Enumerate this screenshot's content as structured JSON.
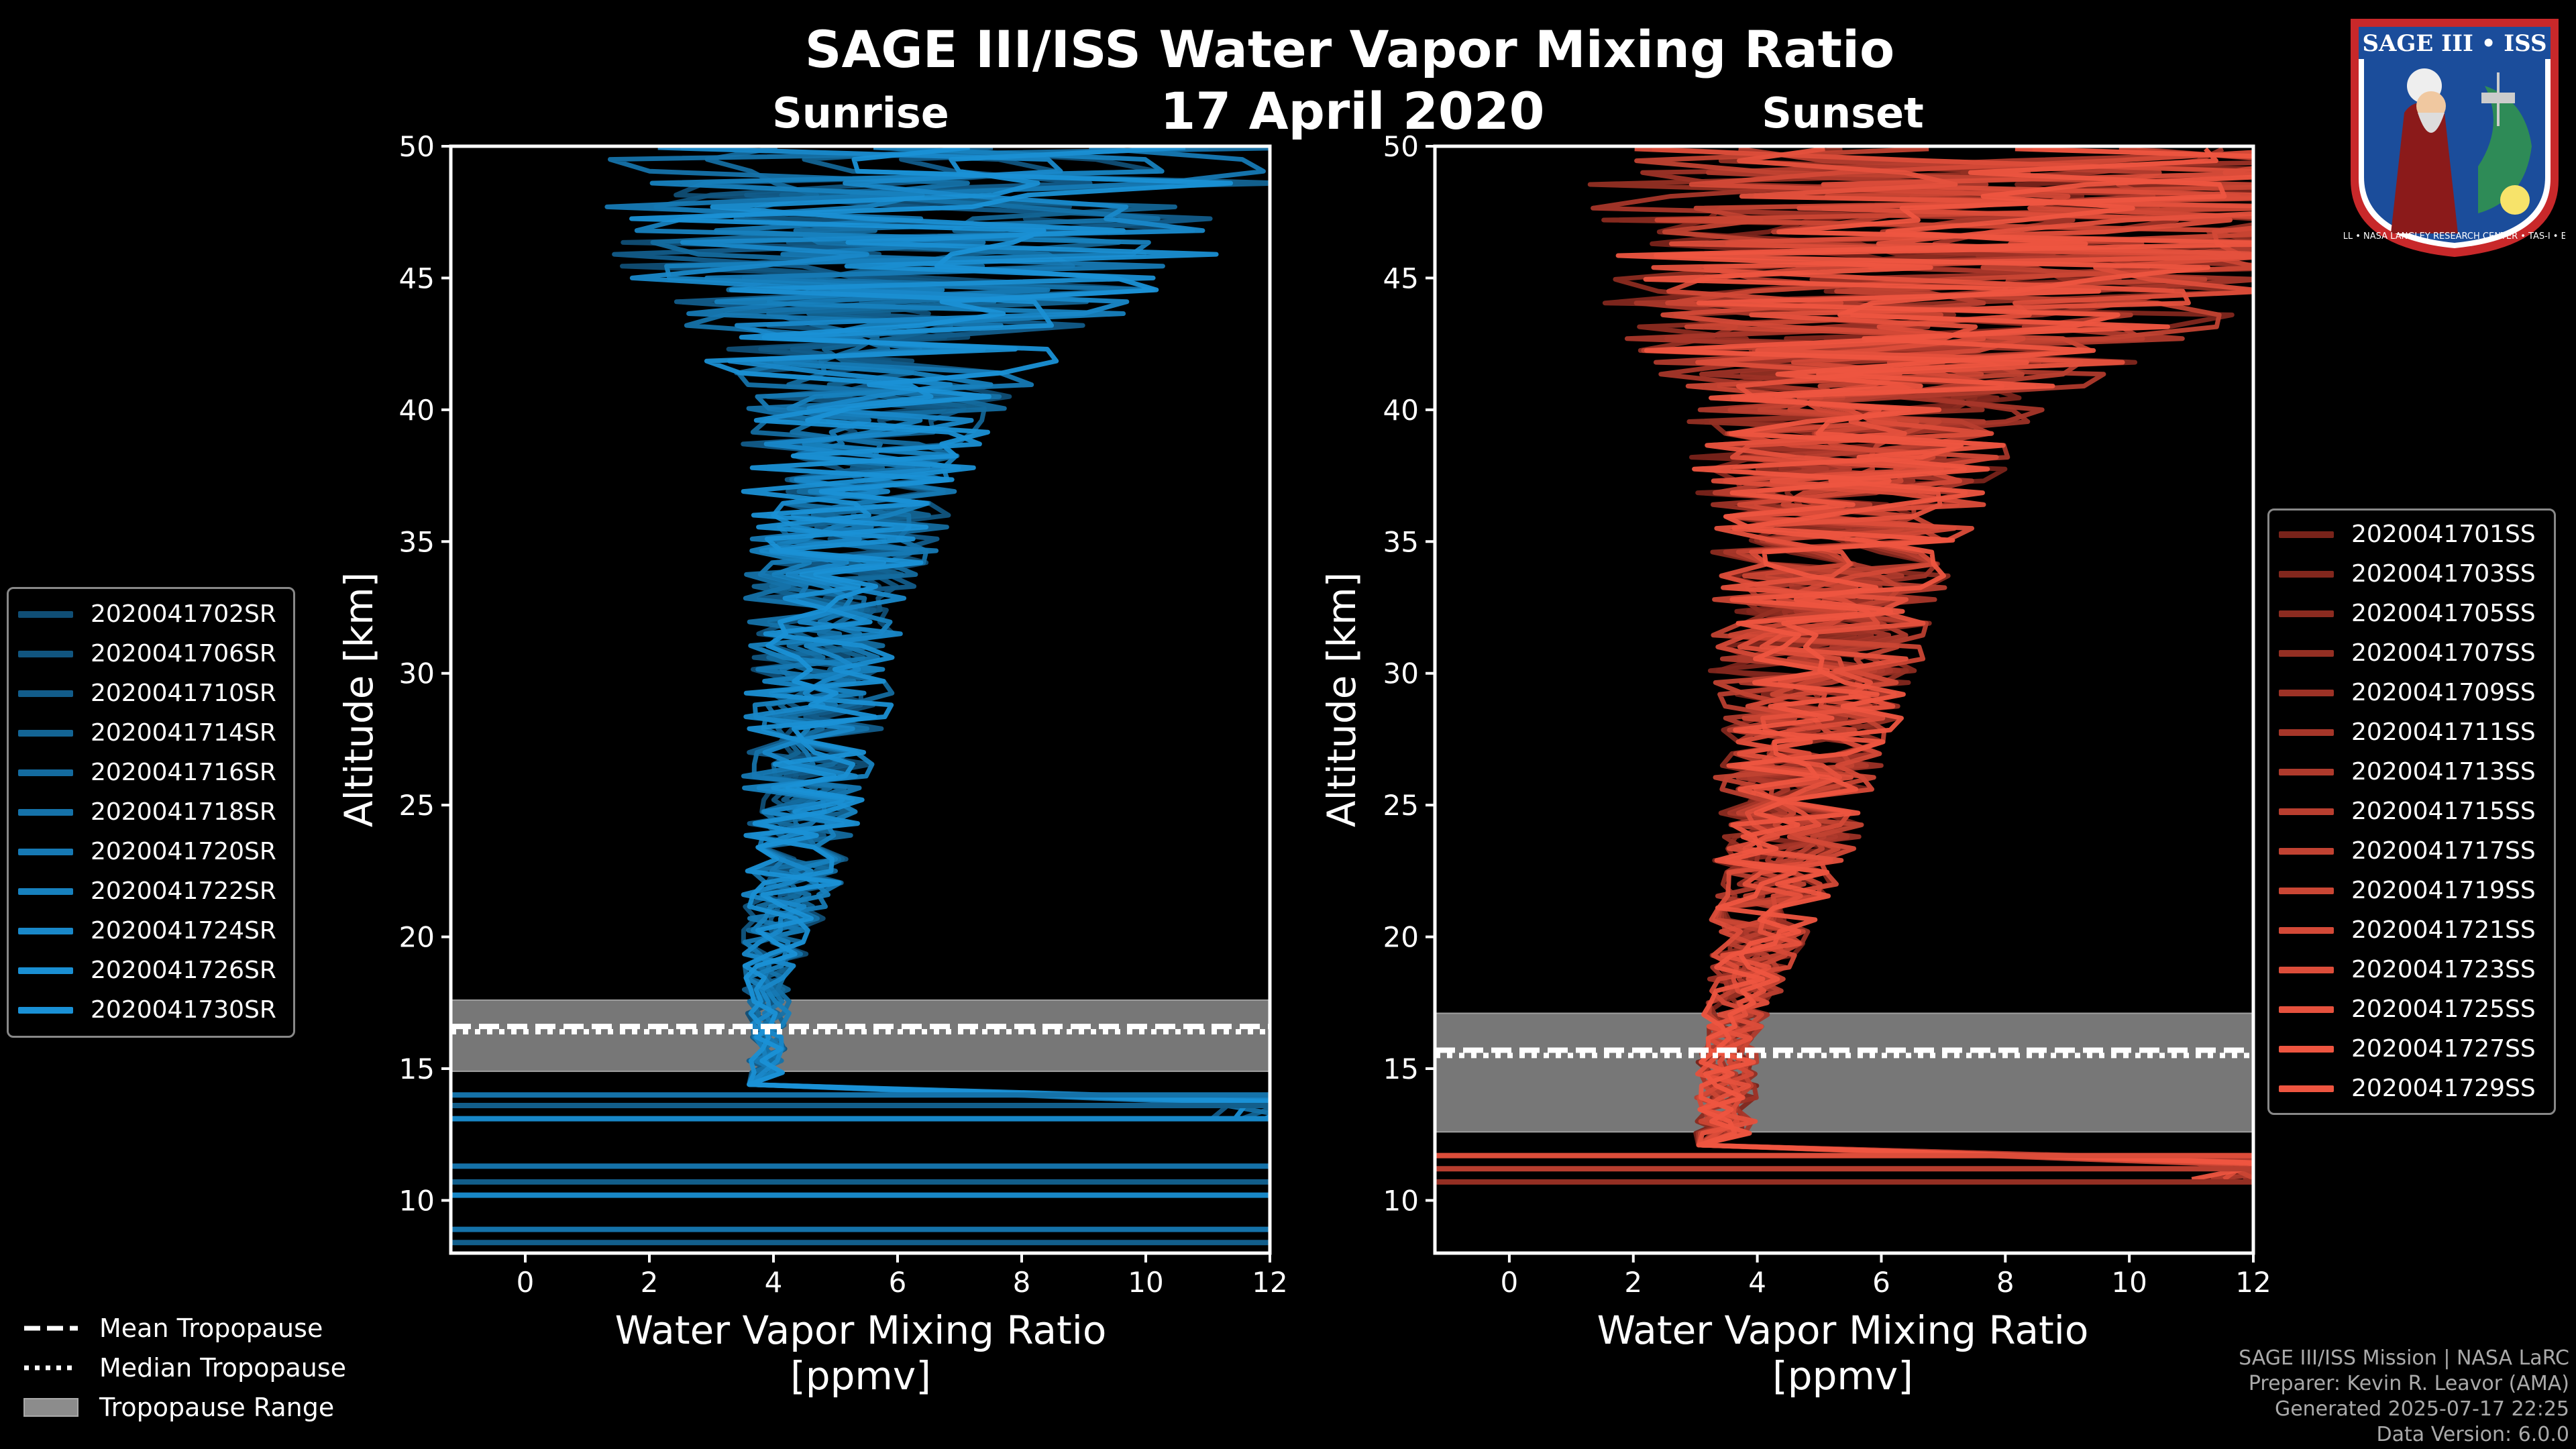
{
  "title": "SAGE III/ISS Water Vapor Mixing Ratio",
  "date": "17 April 2020",
  "badge": {
    "text": "SAGE III • ISS",
    "ring_text": "BALL • NASA LANGLEY RESEARCH CENTER • TAS-I • ESA"
  },
  "footer": {
    "line1": "SAGE III/ISS Mission | NASA LaRC",
    "line2": "Preparer: Kevin R. Leavor (AMA)",
    "line3": "Generated 2025-07-17 22:25",
    "line4": "Data Version: 6.0.0"
  },
  "tropo_legend": [
    "Mean Tropopause",
    "Median Tropopause",
    "Tropopause Range"
  ],
  "colors": {
    "sunrise": "#1a91d6",
    "sunset": "#ee5540",
    "tropo_band": "#8c8c8c",
    "axis": "#ffffff"
  },
  "chart_data": [
    {
      "type": "line",
      "title": "Sunrise",
      "xlabel": "Water Vapor Mixing Ratio [ppmv]",
      "ylabel": "Altitude [km]",
      "xlim": [
        -1.2,
        12
      ],
      "ylim": [
        8,
        50
      ],
      "xticks": [
        0,
        2,
        4,
        6,
        8,
        10,
        12
      ],
      "yticks": [
        10,
        15,
        20,
        25,
        30,
        35,
        40,
        45,
        50
      ],
      "legend_placement": "left",
      "tropopause": {
        "mean": 16.6,
        "median": 16.4,
        "range": [
          14.9,
          17.6
        ]
      },
      "series": [
        {
          "name": "2020041702SR"
        },
        {
          "name": "2020041706SR"
        },
        {
          "name": "2020041710SR"
        },
        {
          "name": "2020041714SR"
        },
        {
          "name": "2020041716SR"
        },
        {
          "name": "2020041718SR"
        },
        {
          "name": "2020041720SR"
        },
        {
          "name": "2020041722SR"
        },
        {
          "name": "2020041724SR"
        },
        {
          "name": "2020041726SR"
        },
        {
          "name": "2020041730SR"
        }
      ],
      "profile_center": [
        [
          16,
          3.9
        ],
        [
          18,
          3.9
        ],
        [
          20,
          4.1
        ],
        [
          22,
          4.3
        ],
        [
          25,
          4.5
        ],
        [
          28,
          4.7
        ],
        [
          31,
          4.8
        ],
        [
          34,
          5.0
        ],
        [
          37,
          5.3
        ],
        [
          40,
          5.5
        ],
        [
          43,
          5.9
        ],
        [
          46,
          6.3
        ],
        [
          50,
          6.8
        ]
      ],
      "profile_spread": [
        [
          16,
          0.3
        ],
        [
          18,
          0.4
        ],
        [
          20,
          0.6
        ],
        [
          22,
          0.8
        ],
        [
          25,
          1.0
        ],
        [
          28,
          1.2
        ],
        [
          31,
          1.2
        ],
        [
          34,
          1.5
        ],
        [
          37,
          1.8
        ],
        [
          40,
          2.2
        ],
        [
          43,
          3.5
        ],
        [
          46,
          5.0
        ],
        [
          50,
          6.0
        ]
      ]
    },
    {
      "type": "line",
      "title": "Sunset",
      "xlabel": "Water Vapor Mixing Ratio [ppmv]",
      "ylabel": "Altitude [km]",
      "xlim": [
        -1.2,
        12
      ],
      "ylim": [
        8,
        50
      ],
      "xticks": [
        0,
        2,
        4,
        6,
        8,
        10,
        12
      ],
      "yticks": [
        10,
        15,
        20,
        25,
        30,
        35,
        40,
        45,
        50
      ],
      "legend_placement": "right",
      "tropopause": {
        "mean": 15.7,
        "median": 15.5,
        "range": [
          12.6,
          17.1
        ]
      },
      "series": [
        {
          "name": "2020041701SS"
        },
        {
          "name": "2020041703SS"
        },
        {
          "name": "2020041705SS"
        },
        {
          "name": "2020041707SS"
        },
        {
          "name": "2020041709SS"
        },
        {
          "name": "2020041711SS"
        },
        {
          "name": "2020041713SS"
        },
        {
          "name": "2020041715SS"
        },
        {
          "name": "2020041717SS"
        },
        {
          "name": "2020041719SS"
        },
        {
          "name": "2020041721SS"
        },
        {
          "name": "2020041723SS"
        },
        {
          "name": "2020041725SS"
        },
        {
          "name": "2020041727SS"
        },
        {
          "name": "2020041729SS"
        }
      ],
      "profile_center": [
        [
          16,
          3.5
        ],
        [
          18,
          3.8
        ],
        [
          20,
          4.0
        ],
        [
          22,
          4.3
        ],
        [
          25,
          4.6
        ],
        [
          28,
          4.8
        ],
        [
          31,
          5.0
        ],
        [
          34,
          5.2
        ],
        [
          37,
          5.4
        ],
        [
          40,
          5.8
        ],
        [
          43,
          6.5
        ],
        [
          46,
          7.5
        ],
        [
          50,
          8.0
        ]
      ],
      "profile_spread": [
        [
          16,
          0.5
        ],
        [
          18,
          0.6
        ],
        [
          20,
          0.8
        ],
        [
          22,
          1.0
        ],
        [
          25,
          1.3
        ],
        [
          28,
          1.5
        ],
        [
          31,
          1.8
        ],
        [
          34,
          2.0
        ],
        [
          37,
          2.4
        ],
        [
          40,
          3.0
        ],
        [
          43,
          5.0
        ],
        [
          46,
          6.0
        ],
        [
          50,
          7.0
        ]
      ]
    }
  ]
}
